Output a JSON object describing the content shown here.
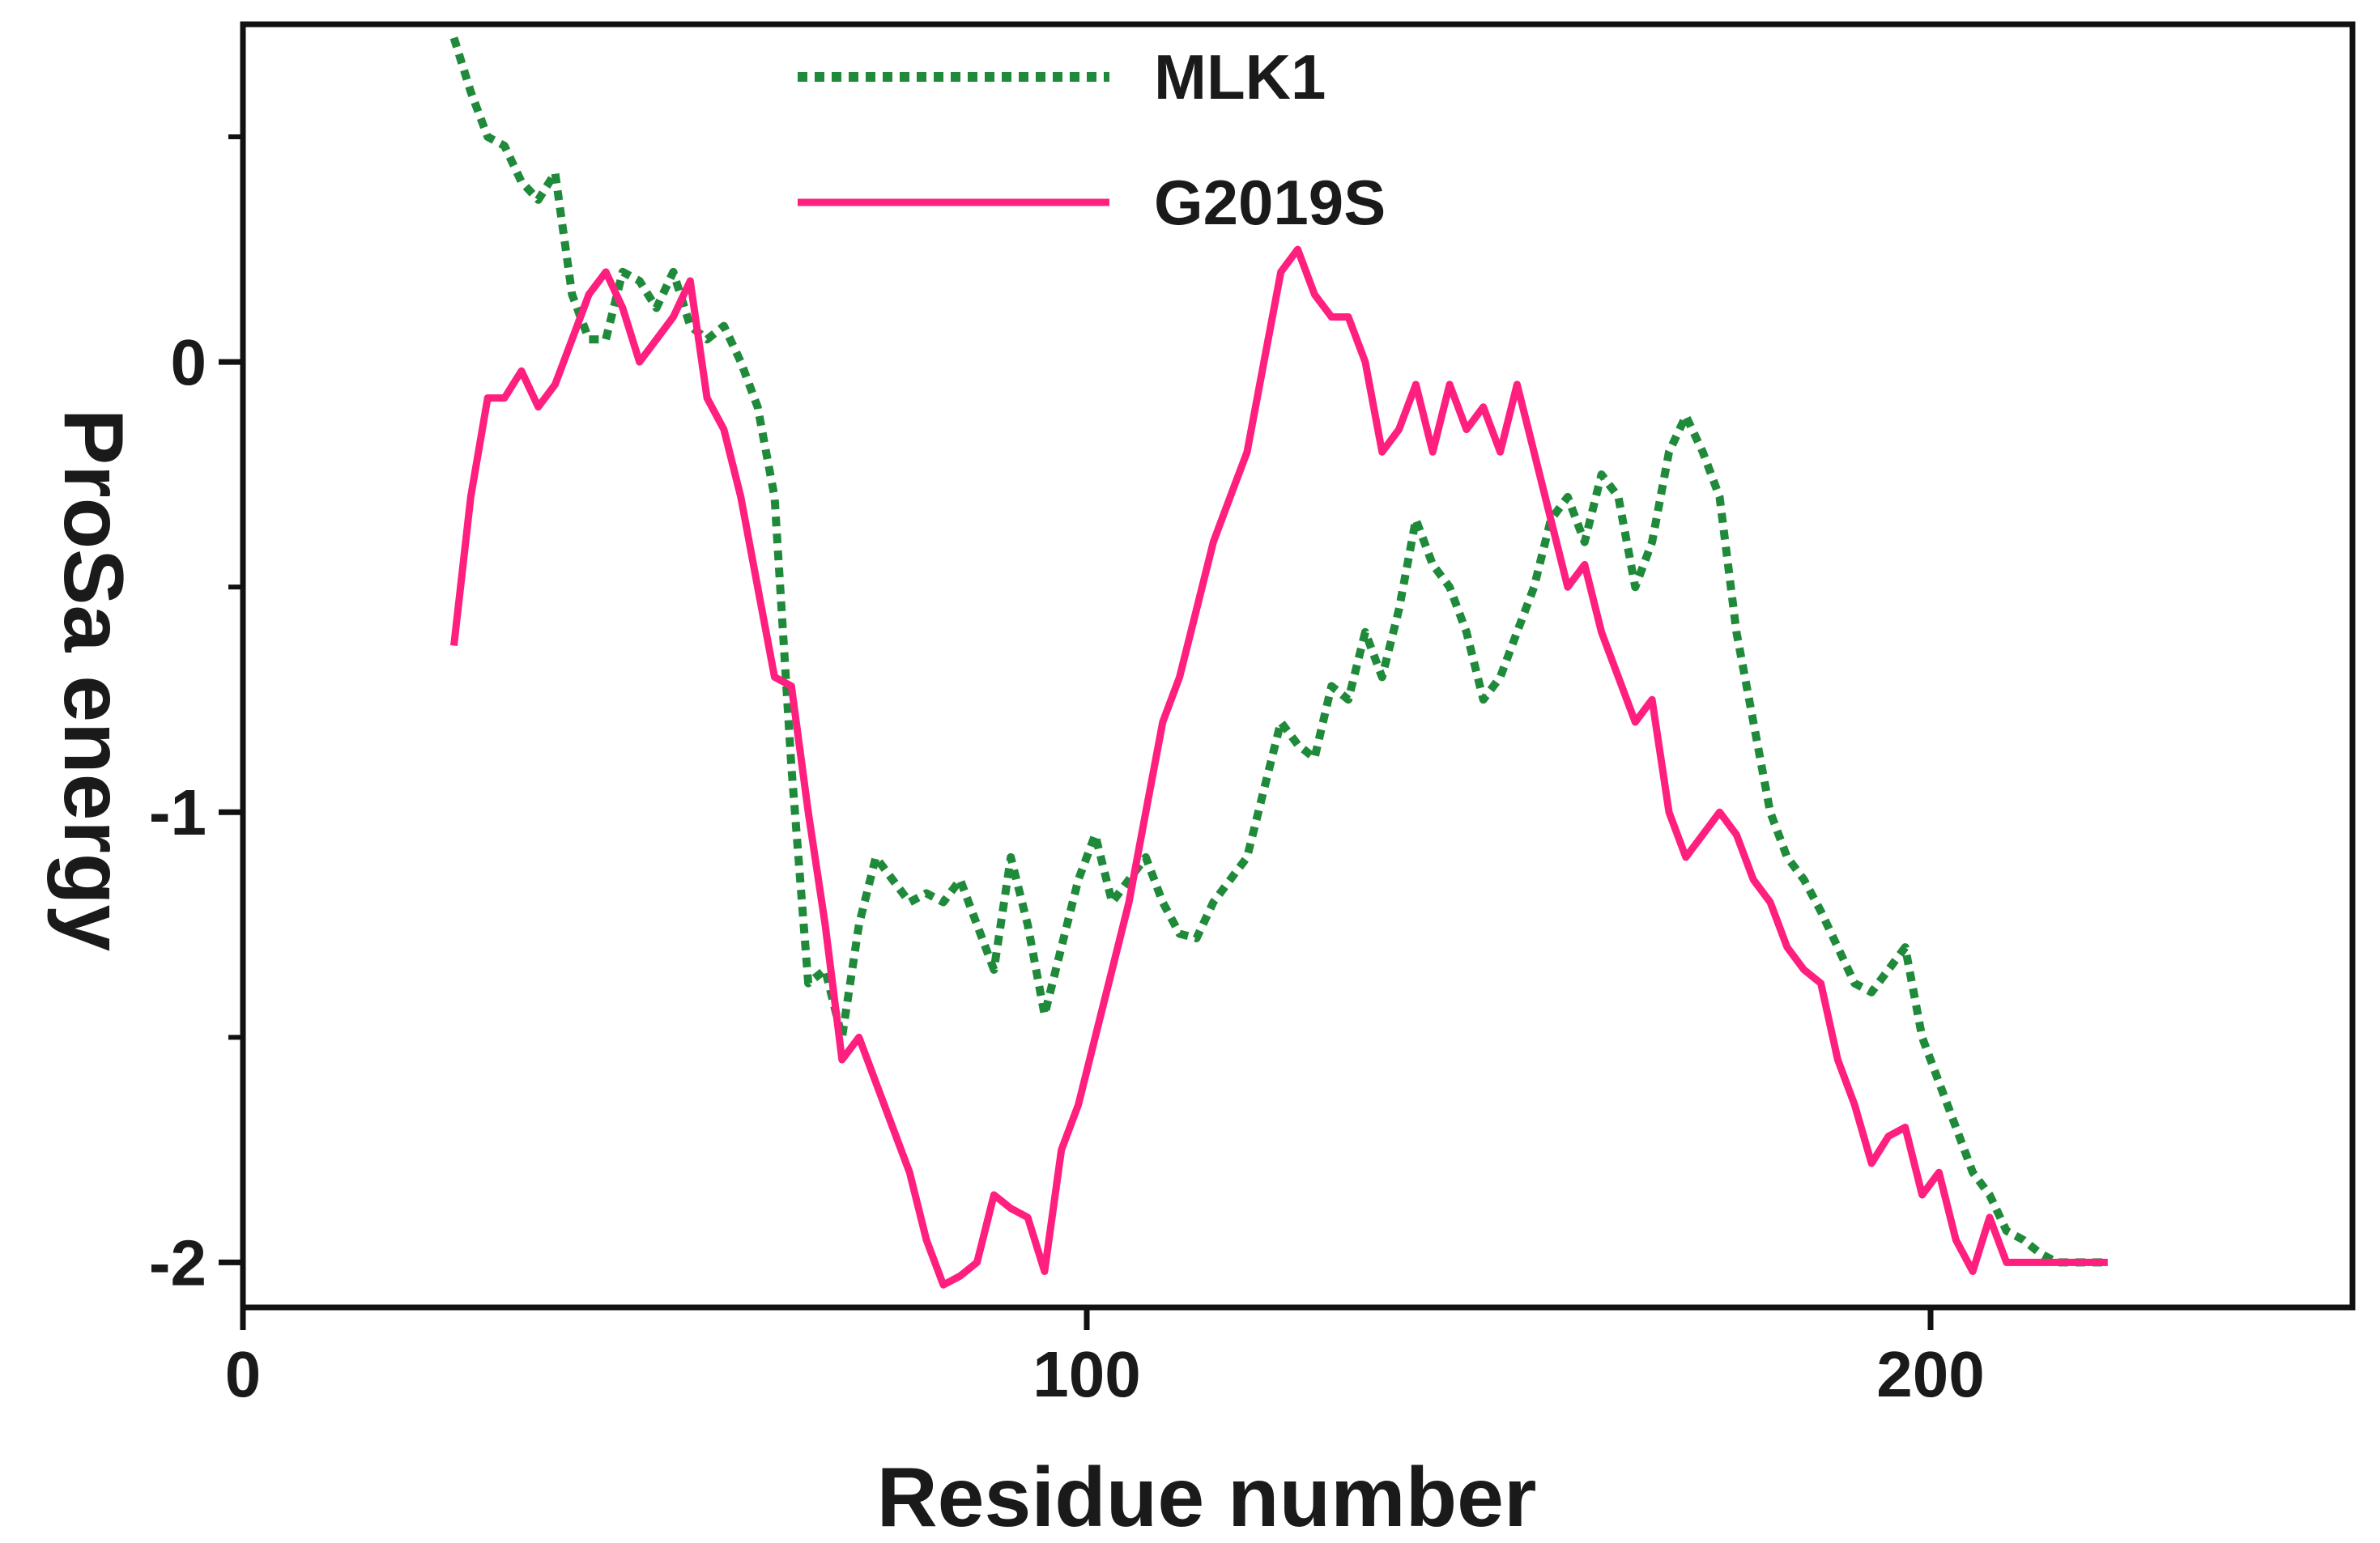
{
  "chart_data": {
    "type": "line",
    "title": "",
    "xlabel": "Residue number",
    "ylabel": "ProSa energy",
    "xlim": [
      0,
      250
    ],
    "ylim": [
      -2.1,
      0.75
    ],
    "x_ticks": [
      0,
      100,
      200
    ],
    "x_tick_labels": [
      "0",
      "100",
      "200"
    ],
    "y_ticks": [
      -2,
      -1,
      0
    ],
    "y_tick_labels": [
      "-2",
      "-1",
      "0"
    ],
    "y_minor_ticks": [
      -1.5,
      -0.5,
      0.5
    ],
    "grid": false,
    "legend_position": "top-center",
    "series": [
      {
        "name": "MLK1",
        "color": "#1f8a3a",
        "style": "dotted",
        "x": [
          25,
          27,
          29,
          31,
          33,
          35,
          37,
          39,
          41,
          43,
          45,
          47,
          49,
          51,
          53,
          55,
          57,
          59,
          61,
          63,
          65,
          67,
          69,
          71,
          73,
          75,
          77,
          79,
          81,
          83,
          85,
          87,
          89,
          91,
          93,
          95,
          97,
          99,
          101,
          103,
          105,
          107,
          109,
          111,
          113,
          115,
          117,
          119,
          121,
          123,
          125,
          127,
          129,
          131,
          133,
          135,
          137,
          139,
          141,
          143,
          145,
          147,
          149,
          151,
          153,
          155,
          157,
          159,
          161,
          163,
          165,
          167,
          169,
          171,
          173,
          175,
          177,
          179,
          181,
          183,
          185,
          187,
          189,
          191,
          193,
          195,
          197,
          199,
          201,
          203,
          205,
          207,
          209,
          211,
          213,
          215,
          217,
          219,
          221
        ],
        "y": [
          0.72,
          0.6,
          0.5,
          0.48,
          0.4,
          0.36,
          0.42,
          0.15,
          0.05,
          0.05,
          0.2,
          0.18,
          0.12,
          0.2,
          0.08,
          0.05,
          0.08,
          0.0,
          -0.1,
          -0.3,
          -0.9,
          -1.38,
          -1.35,
          -1.5,
          -1.25,
          -1.1,
          -1.15,
          -1.2,
          -1.18,
          -1.2,
          -1.15,
          -1.25,
          -1.35,
          -1.1,
          -1.25,
          -1.45,
          -1.3,
          -1.15,
          -1.05,
          -1.2,
          -1.15,
          -1.1,
          -1.2,
          -1.27,
          -1.28,
          -1.2,
          -1.15,
          -1.1,
          -0.95,
          -0.8,
          -0.85,
          -0.88,
          -0.72,
          -0.75,
          -0.6,
          -0.7,
          -0.55,
          -0.35,
          -0.45,
          -0.5,
          -0.6,
          -0.75,
          -0.7,
          -0.6,
          -0.5,
          -0.35,
          -0.3,
          -0.4,
          -0.25,
          -0.3,
          -0.5,
          -0.4,
          -0.2,
          -0.12,
          -0.2,
          -0.3,
          -0.6,
          -0.8,
          -1.0,
          -1.1,
          -1.15,
          -1.22,
          -1.3,
          -1.38,
          -1.4,
          -1.35,
          -1.3,
          -1.5,
          -1.6,
          -1.7,
          -1.8,
          -1.85,
          -1.93,
          -1.95,
          -1.98,
          -2.0,
          -2.0,
          -2.0,
          -2.0
        ],
        "note_x_range": "25-220"
      },
      {
        "name": "G2019S",
        "color": "#ff1f7f",
        "style": "solid",
        "x": [
          25,
          27,
          29,
          31,
          33,
          35,
          37,
          39,
          41,
          43,
          45,
          47,
          49,
          51,
          53,
          55,
          57,
          59,
          61,
          63,
          65,
          67,
          69,
          71,
          73,
          75,
          77,
          79,
          81,
          83,
          85,
          87,
          89,
          91,
          93,
          95,
          97,
          99,
          101,
          103,
          105,
          107,
          109,
          111,
          113,
          115,
          117,
          119,
          121,
          123,
          125,
          127,
          129,
          131,
          133,
          135,
          137,
          139,
          141,
          143,
          145,
          147,
          149,
          151,
          153,
          155,
          157,
          159,
          161,
          163,
          165,
          167,
          169,
          171,
          173,
          175,
          177,
          179,
          181,
          183,
          185,
          187,
          189,
          191,
          193,
          195,
          197,
          199,
          201,
          203,
          205,
          207,
          209,
          211,
          213,
          215,
          217,
          219,
          221
        ],
        "y": [
          -0.63,
          -0.3,
          -0.08,
          -0.08,
          -0.02,
          -0.1,
          -0.05,
          0.05,
          0.15,
          0.2,
          0.12,
          0.0,
          0.05,
          0.1,
          0.18,
          -0.08,
          -0.15,
          -0.3,
          -0.5,
          -0.7,
          -0.72,
          -1.0,
          -1.25,
          -1.55,
          -1.5,
          -1.6,
          -1.7,
          -1.8,
          -1.95,
          -2.05,
          -2.03,
          -2.0,
          -1.85,
          -1.88,
          -1.9,
          -2.02,
          -1.75,
          -1.65,
          -1.5,
          -1.35,
          -1.2,
          -1.0,
          -0.8,
          -0.7,
          -0.55,
          -0.4,
          -0.3,
          -0.2,
          0.0,
          0.2,
          0.25,
          0.15,
          0.1,
          0.1,
          0.0,
          -0.2,
          -0.15,
          -0.05,
          -0.2,
          -0.05,
          -0.15,
          -0.1,
          -0.2,
          -0.05,
          -0.2,
          -0.35,
          -0.5,
          -0.45,
          -0.6,
          -0.7,
          -0.8,
          -0.75,
          -1.0,
          -1.1,
          -1.05,
          -1.0,
          -1.05,
          -1.15,
          -1.2,
          -1.3,
          -1.35,
          -1.38,
          -1.55,
          -1.65,
          -1.78,
          -1.72,
          -1.7,
          -1.85,
          -1.8,
          -1.95,
          -2.02,
          -1.9,
          -2.0,
          -2.0,
          -2.0,
          -2.0,
          -2.0,
          -2.0,
          -2.0
        ]
      }
    ]
  }
}
